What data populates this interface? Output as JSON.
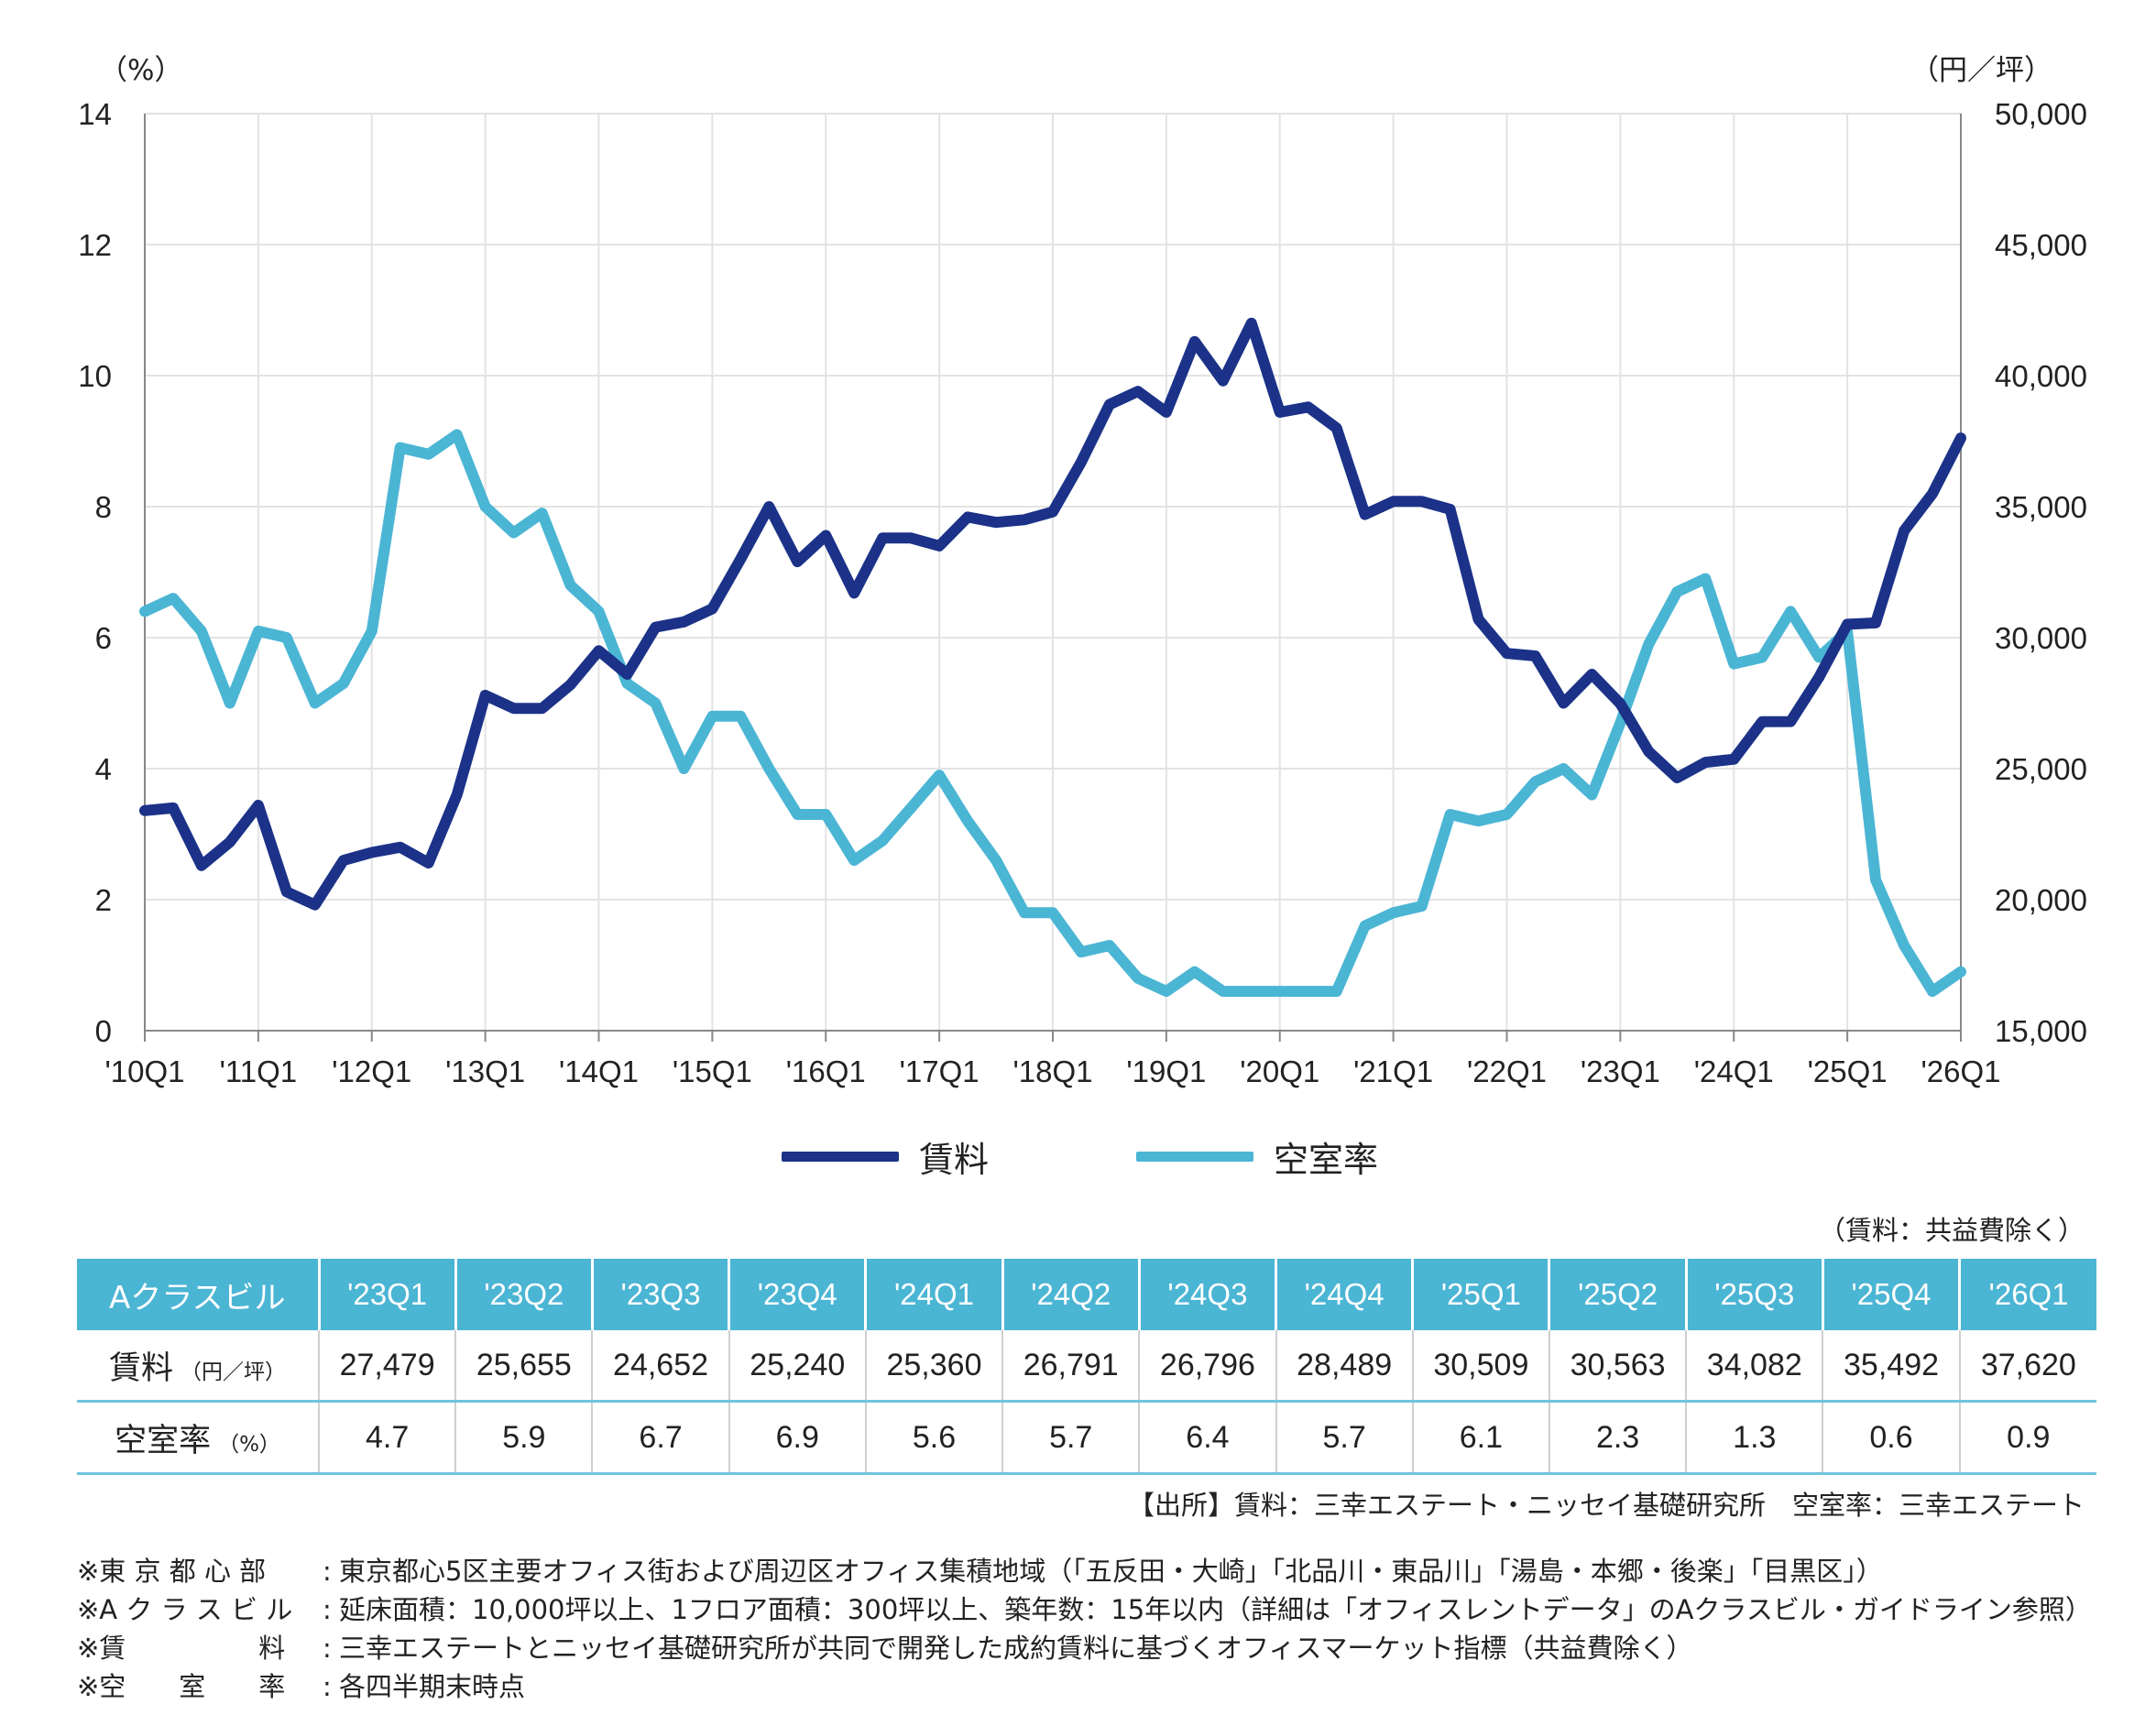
{
  "chart_data": {
    "type": "line",
    "y_left_unit": "（%）",
    "y_right_unit": "（円／坪）",
    "y_left_range": [
      0,
      14
    ],
    "y_right_range": [
      15000,
      50000
    ],
    "y_left_ticks": [
      "0",
      "2",
      "4",
      "6",
      "8",
      "10",
      "12",
      "14"
    ],
    "y_right_ticks": [
      "15,000",
      "20,000",
      "25,000",
      "30,000",
      "35,000",
      "40,000",
      "45,000",
      "50,000"
    ],
    "x_tick_labels": [
      "'10Q1",
      "'11Q1",
      "'12Q1",
      "'13Q1",
      "'14Q1",
      "'15Q1",
      "'16Q1",
      "'17Q1",
      "'18Q1",
      "'19Q1",
      "'20Q1",
      "'21Q1",
      "'22Q1",
      "'23Q1",
      "'24Q1",
      "'25Q1",
      "'26Q1"
    ],
    "grid": true,
    "legend_position": "bottom-center",
    "series": [
      {
        "name": "賃料",
        "axis": "right",
        "color": "#1b3288",
        "values": [
          23400,
          23500,
          21300,
          22200,
          23600,
          20300,
          19800,
          21500,
          21800,
          22000,
          21400,
          24000,
          27800,
          27300,
          27300,
          28200,
          29500,
          28600,
          30400,
          30600,
          31100,
          33000,
          35000,
          32900,
          33900,
          31700,
          33800,
          33800,
          33500,
          34600,
          34400,
          34500,
          34800,
          36700,
          38900,
          39400,
          38600,
          41300,
          39800,
          42000,
          38600,
          38800,
          38000,
          34700,
          35200,
          35200,
          34900,
          30700,
          29400,
          29300,
          27500,
          28600,
          27479,
          25655,
          24652,
          25240,
          25360,
          26791,
          26796,
          28489,
          30509,
          30563,
          34082,
          35492,
          37620
        ]
      },
      {
        "name": "空室率",
        "axis": "left",
        "color": "#4bb5d4",
        "values": [
          6.4,
          6.6,
          6.1,
          5.0,
          6.1,
          6.0,
          5.0,
          5.3,
          6.1,
          8.9,
          8.8,
          9.1,
          8.0,
          7.6,
          7.9,
          6.8,
          6.4,
          5.3,
          5.0,
          4.0,
          4.8,
          4.8,
          4.0,
          3.3,
          3.3,
          2.6,
          2.9,
          3.4,
          3.9,
          3.2,
          2.6,
          1.8,
          1.8,
          1.2,
          1.3,
          0.8,
          0.6,
          0.9,
          0.6,
          0.6,
          0.6,
          0.6,
          0.6,
          1.6,
          1.8,
          1.9,
          3.3,
          3.2,
          3.3,
          3.8,
          4.0,
          3.6,
          4.7,
          5.9,
          6.7,
          6.9,
          5.6,
          5.7,
          6.4,
          5.7,
          6.1,
          2.3,
          1.3,
          0.6,
          0.9
        ]
      }
    ]
  },
  "legend": {
    "rent_label": "賃料",
    "vacancy_label": "空室率"
  },
  "table": {
    "note": "（賃料：共益費除く）",
    "corner_label": "Aクラスビル",
    "quarters": [
      "'23Q1",
      "'23Q2",
      "'23Q3",
      "'23Q4",
      "'24Q1",
      "'24Q2",
      "'24Q3",
      "'24Q4",
      "'25Q1",
      "'25Q2",
      "'25Q3",
      "'25Q4",
      "'26Q1"
    ],
    "rent_label": "賃料",
    "rent_unit": "（円／坪）",
    "rent_values": [
      "27,479",
      "25,655",
      "24,652",
      "25,240",
      "25,360",
      "26,791",
      "26,796",
      "28,489",
      "30,509",
      "30,563",
      "34,082",
      "35,492",
      "37,620"
    ],
    "vacancy_label": "空室率",
    "vacancy_unit": "（%）",
    "vacancy_values": [
      "4.7",
      "5.9",
      "6.7",
      "6.9",
      "5.6",
      "5.7",
      "6.4",
      "5.7",
      "6.1",
      "2.3",
      "1.3",
      "0.6",
      "0.9"
    ]
  },
  "source": "【出所】賃料：三幸エステート・ニッセイ基礎研究所　空室率：三幸エステート",
  "notes": [
    {
      "key": "※東 京 都 心 部",
      "text": "東京都心5区主要オフィス街および周辺区オフィス集積地域（「五反田・大崎」「北品川・東品川」「湯島・本郷・後楽」「目黒区」）"
    },
    {
      "key": "※A ク ラ ス ビ ル",
      "text": "延床面積：10,000坪以上、1フロア面積：300坪以上、築年数：15年以内（詳細は「オフィスレントデータ」のAクラスビル・ガイドライン参照）"
    },
    {
      "key": "※賃　　　　　料",
      "text": "三幸エステートとニッセイ基礎研究所が共同で開発した成約賃料に基づくオフィスマーケット指標（共益費除く）"
    },
    {
      "key": "※空　　室　　率",
      "text": "各四半期末時点"
    }
  ]
}
